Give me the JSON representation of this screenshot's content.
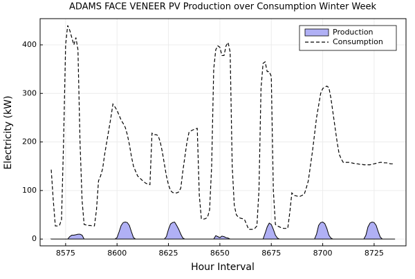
{
  "chart_data": {
    "type": "line",
    "title": "ADAMS FACE VENEER PV Production over Consumption Winter Week",
    "xlabel": "Hour Interval",
    "ylabel": "Electricity (kW)",
    "xlim": [
      8562.6,
      8740.5
    ],
    "xticks": [
      8575,
      8600,
      8625,
      8650,
      8675,
      8700,
      8725
    ],
    "ylim": [
      -14,
      454
    ],
    "yticks": [
      0,
      100,
      200,
      300,
      400
    ],
    "grid": true,
    "legend": "top right",
    "x": [
      8568,
      8569,
      8570,
      8571,
      8572,
      8573,
      8574,
      8575,
      8576,
      8577,
      8578,
      8579,
      8580,
      8581,
      8582,
      8583,
      8584,
      8585,
      8586,
      8587,
      8588,
      8589,
      8590,
      8591,
      8592,
      8593,
      8594,
      8595,
      8596,
      8597,
      8598,
      8599,
      8600,
      8601,
      8602,
      8603,
      8604,
      8605,
      8606,
      8607,
      8608,
      8609,
      8610,
      8611,
      8612,
      8613,
      8614,
      8615,
      8616,
      8617,
      8618,
      8619,
      8620,
      8621,
      8622,
      8623,
      8624,
      8625,
      8626,
      8627,
      8628,
      8629,
      8630,
      8631,
      8632,
      8633,
      8634,
      8635,
      8636,
      8637,
      8638,
      8639,
      8640,
      8641,
      8642,
      8643,
      8644,
      8645,
      8646,
      8647,
      8648,
      8649,
      8650,
      8651,
      8652,
      8653,
      8654,
      8655,
      8656,
      8657,
      8658,
      8659,
      8660,
      8661,
      8662,
      8663,
      8664,
      8665,
      8666,
      8667,
      8668,
      8669,
      8670,
      8671,
      8672,
      8673,
      8674,
      8675,
      8676,
      8677,
      8678,
      8679,
      8680,
      8681,
      8682,
      8683,
      8684,
      8685,
      8686,
      8687,
      8688,
      8689,
      8690,
      8691,
      8692,
      8693,
      8694,
      8695,
      8696,
      8697,
      8698,
      8699,
      8700,
      8701,
      8702,
      8703,
      8704,
      8705,
      8706,
      8707,
      8708,
      8709,
      8710,
      8711,
      8712,
      8713,
      8714,
      8715,
      8716,
      8717,
      8718,
      8719,
      8720,
      8721,
      8722,
      8723,
      8724,
      8725,
      8726,
      8727,
      8728,
      8729,
      8730,
      8731,
      8732,
      8733,
      8734,
      8735
    ],
    "series": [
      {
        "name": "Production",
        "color": "#b0b0f5",
        "style": "area",
        "values": [
          0,
          0,
          0,
          0,
          0,
          0,
          0,
          0,
          0,
          5,
          8,
          8,
          9,
          10,
          10,
          8,
          0,
          0,
          0,
          0,
          0,
          0,
          0,
          0,
          0,
          0,
          0,
          0,
          0,
          0,
          0,
          0,
          3,
          15,
          28,
          34,
          35,
          34,
          28,
          15,
          3,
          0,
          0,
          0,
          0,
          0,
          0,
          0,
          0,
          0,
          0,
          0,
          0,
          0,
          0,
          0,
          5,
          20,
          31,
          34,
          35,
          28,
          20,
          10,
          2,
          0,
          0,
          0,
          0,
          0,
          0,
          0,
          0,
          0,
          0,
          0,
          0,
          0,
          0,
          0,
          7,
          5,
          3,
          6,
          5,
          3,
          2,
          0,
          0,
          0,
          0,
          0,
          0,
          0,
          0,
          0,
          0,
          0,
          0,
          0,
          0,
          0,
          0,
          0,
          12,
          25,
          33,
          30,
          20,
          8,
          2,
          0,
          0,
          0,
          0,
          0,
          0,
          0,
          0,
          0,
          0,
          0,
          0,
          0,
          0,
          0,
          0,
          0,
          0,
          10,
          28,
          34,
          35,
          32,
          22,
          8,
          2,
          0,
          0,
          0,
          0,
          0,
          0,
          0,
          0,
          0,
          0,
          0,
          0,
          0,
          0,
          0,
          0,
          8,
          25,
          33,
          35,
          34,
          28,
          15,
          4,
          0,
          0,
          0,
          0,
          0,
          0,
          0
        ]
      },
      {
        "name": "Consumption",
        "color": "#000000",
        "style": "dashed",
        "values": [
          143,
          80,
          27,
          27,
          28,
          40,
          200,
          400,
          440,
          430,
          415,
          400,
          415,
          390,
          200,
          80,
          30,
          29,
          28,
          28,
          27,
          27,
          60,
          120,
          130,
          145,
          175,
          200,
          225,
          250,
          278,
          272,
          265,
          255,
          245,
          238,
          230,
          215,
          195,
          170,
          150,
          140,
          130,
          126,
          122,
          118,
          115,
          113,
          112,
          218,
          215,
          215,
          213,
          200,
          180,
          155,
          130,
          112,
          100,
          96,
          95,
          95,
          97,
          105,
          140,
          170,
          200,
          220,
          223,
          225,
          227,
          228,
          90,
          42,
          41,
          42,
          45,
          60,
          150,
          350,
          390,
          398,
          395,
          378,
          378,
          398,
          405,
          385,
          150,
          70,
          50,
          45,
          43,
          42,
          40,
          30,
          20,
          20,
          20,
          22,
          27,
          100,
          310,
          362,
          365,
          345,
          345,
          335,
          100,
          30,
          27,
          25,
          23,
          22,
          22,
          22,
          55,
          95,
          90,
          89,
          88,
          88,
          90,
          92,
          105,
          120,
          150,
          180,
          215,
          250,
          275,
          300,
          310,
          313,
          315,
          312,
          290,
          260,
          230,
          200,
          175,
          165,
          158,
          158,
          158,
          158,
          157,
          156,
          155,
          155,
          154,
          154,
          153,
          153,
          153,
          153,
          154,
          155,
          156,
          157,
          158,
          158,
          157,
          157,
          156,
          155,
          155,
          155
        ]
      }
    ]
  }
}
